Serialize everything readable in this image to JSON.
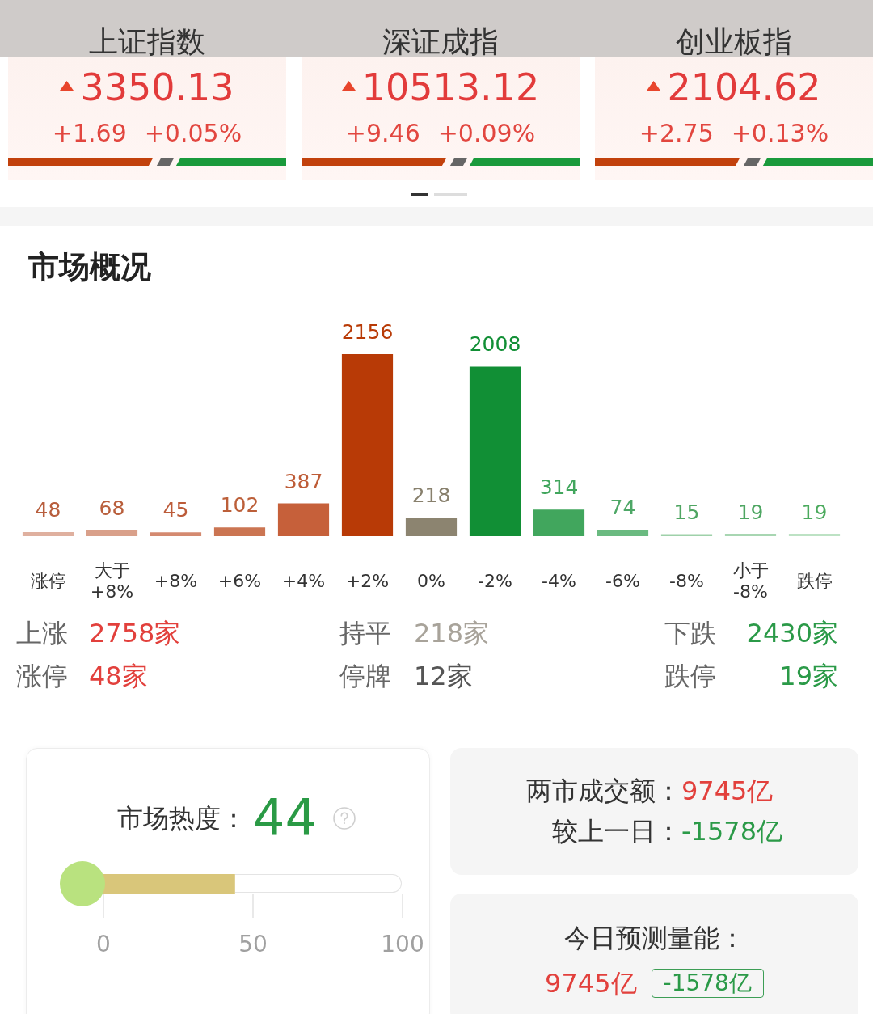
{
  "chart_data": [
    {
      "type": "other",
      "title": "上证指数",
      "annotations": [
        "3350.13",
        "+1.69",
        "+0.05%"
      ]
    },
    {
      "type": "other",
      "title": "深证成指",
      "annotations": [
        "10513.12",
        "+9.46",
        "+0.09%"
      ]
    },
    {
      "type": "other",
      "title": "创业板指",
      "annotations": [
        "2104.62",
        "+2.75",
        "+0.13%"
      ]
    },
    {
      "type": "bar",
      "title": "市场概况",
      "categories": [
        "涨停",
        "大于\n+8%",
        "+8%",
        "+6%",
        "+4%",
        "+2%",
        "0%",
        "-2%",
        "-4%",
        "-6%",
        "-8%",
        "小于\n-8%",
        "跌停"
      ],
      "values": [
        48,
        68,
        45,
        102,
        387,
        2156,
        218,
        2008,
        314,
        74,
        15,
        19,
        19
      ],
      "colors": [
        "#dfb09f",
        "#d9a08a",
        "#d48a70",
        "#cb7552",
        "#c6603a",
        "#b83a06",
        "#8c8470",
        "#118f35",
        "#41a65d",
        "#6aba80",
        "#9fd1aa",
        "#a8d6b2",
        "#bde2c4"
      ],
      "data_labels": true,
      "tick_labels": "x"
    },
    {
      "type": "other",
      "annotations": [
        "上涨",
        "2758家",
        "持平",
        "218家",
        "下跌",
        "2430家",
        "涨停",
        "48家",
        "停牌",
        "12家",
        "跌停",
        "19家"
      ]
    },
    {
      "type": "bar",
      "orientation": "horizontal",
      "title": "市场热度：",
      "annotations": [
        "44"
      ],
      "categories": [
        null
      ],
      "values": [
        44
      ],
      "color": "#d9c67a",
      "xlim": [
        0,
        100
      ],
      "xticks": [
        0,
        50,
        100
      ],
      "tick_labels": "x"
    },
    {
      "type": "other",
      "annotations": [
        "两市成交额：",
        "9745亿",
        "较上一日：",
        "-1578亿"
      ]
    },
    {
      "type": "other",
      "title": "今日预测量能：",
      "annotations": [
        "9745亿",
        "-1578亿"
      ]
    }
  ]
}
